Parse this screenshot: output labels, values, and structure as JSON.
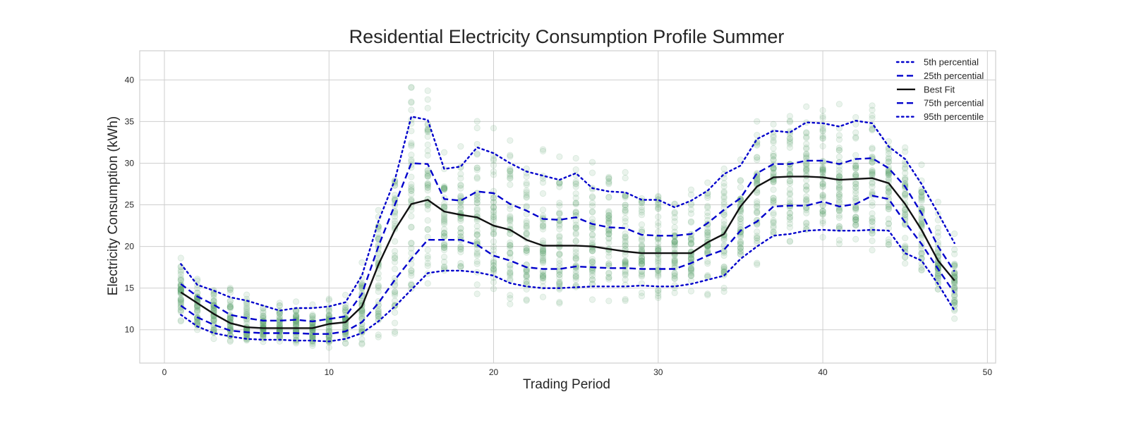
{
  "chart_data": {
    "type": "line",
    "title": "Residential Electricity Consumption Profile Summer",
    "xlabel": "Trading Period",
    "ylabel": "Electricity Consumption (kWh)",
    "xlim": [
      -1.5,
      50.5
    ],
    "ylim": [
      6,
      43.5
    ],
    "xticks": [
      0,
      10,
      20,
      30,
      40,
      50
    ],
    "yticks": [
      10,
      15,
      20,
      25,
      30,
      35,
      40
    ],
    "grid": true,
    "legend_position": "top-right",
    "scatter_color": "#5aa16e",
    "x": [
      1,
      2,
      3,
      4,
      5,
      6,
      7,
      8,
      9,
      10,
      11,
      12,
      13,
      14,
      15,
      16,
      17,
      18,
      19,
      20,
      21,
      22,
      23,
      24,
      25,
      26,
      27,
      28,
      29,
      30,
      31,
      32,
      33,
      34,
      35,
      36,
      37,
      38,
      39,
      40,
      41,
      42,
      43,
      44,
      45,
      46,
      47,
      48
    ],
    "series": [
      {
        "name": "5th percential",
        "style": "dotted",
        "color": "#0000cc",
        "values": [
          11.8,
          10.4,
          9.6,
          9.2,
          8.9,
          8.8,
          8.8,
          8.7,
          8.7,
          8.6,
          8.9,
          9.6,
          11.0,
          12.8,
          14.8,
          16.8,
          17.1,
          17.1,
          16.9,
          16.5,
          15.6,
          15.2,
          15.0,
          15.0,
          15.1,
          15.2,
          15.2,
          15.2,
          15.3,
          15.2,
          15.2,
          15.5,
          16.0,
          16.5,
          18.5,
          20.0,
          21.3,
          21.5,
          21.9,
          22.0,
          21.9,
          21.9,
          22.0,
          21.9,
          19.2,
          18.3,
          15.5,
          12.3
        ]
      },
      {
        "name": "25th percential",
        "style": "dashed",
        "color": "#0000cc",
        "values": [
          12.9,
          11.5,
          10.6,
          9.9,
          9.7,
          9.6,
          9.6,
          9.6,
          9.5,
          9.5,
          9.8,
          10.9,
          13.2,
          16.0,
          18.5,
          20.8,
          20.8,
          20.8,
          20.2,
          18.9,
          18.3,
          17.5,
          17.3,
          17.3,
          17.6,
          17.5,
          17.4,
          17.4,
          17.3,
          17.3,
          17.3,
          18.0,
          18.9,
          19.6,
          21.9,
          23.0,
          24.8,
          24.9,
          24.9,
          25.4,
          24.8,
          25.1,
          26.1,
          25.7,
          22.9,
          20.3,
          17.3,
          14.4
        ]
      },
      {
        "name": "Best Fit",
        "style": "solid",
        "color": "#111111",
        "values": [
          14.5,
          13.2,
          11.9,
          10.8,
          10.3,
          10.2,
          10.2,
          10.2,
          10.2,
          10.7,
          10.9,
          12.8,
          17.8,
          22.0,
          25.1,
          25.6,
          24.2,
          23.8,
          23.5,
          22.5,
          22.0,
          20.8,
          20.1,
          20.1,
          20.1,
          20.0,
          19.7,
          19.4,
          19.2,
          19.2,
          19.2,
          19.2,
          20.5,
          21.5,
          24.8,
          27.2,
          28.3,
          28.4,
          28.4,
          28.3,
          28.0,
          28.1,
          28.2,
          27.6,
          25.1,
          22.0,
          18.3,
          15.9
        ]
      },
      {
        "name": "75th percential",
        "style": "dashed",
        "color": "#0000cc",
        "values": [
          15.5,
          14.0,
          13.0,
          11.8,
          11.4,
          11.1,
          11.1,
          11.2,
          11.0,
          11.3,
          11.6,
          14.3,
          20.0,
          25.0,
          30.0,
          29.9,
          25.7,
          25.5,
          26.6,
          26.4,
          25.1,
          24.3,
          23.3,
          23.2,
          23.5,
          22.7,
          22.3,
          22.2,
          21.4,
          21.3,
          21.3,
          21.5,
          22.8,
          24.4,
          25.8,
          28.8,
          29.9,
          29.9,
          30.3,
          30.3,
          29.9,
          30.5,
          30.6,
          29.4,
          27.2,
          24.0,
          20.0,
          17.0
        ]
      },
      {
        "name": "95th percentile",
        "style": "dotted",
        "color": "#0000cc",
        "values": [
          17.9,
          15.4,
          14.7,
          13.9,
          13.5,
          12.9,
          12.3,
          12.6,
          12.6,
          12.8,
          13.3,
          16.5,
          23.0,
          28.0,
          35.6,
          35.2,
          29.3,
          29.6,
          31.9,
          31.2,
          30.0,
          29.0,
          28.5,
          28.0,
          28.8,
          27.0,
          26.6,
          26.5,
          25.6,
          25.6,
          24.7,
          25.5,
          26.7,
          28.7,
          29.7,
          32.9,
          33.9,
          33.7,
          34.9,
          34.8,
          34.4,
          35.1,
          34.8,
          32.0,
          30.5,
          27.5,
          24.0,
          20.4
        ]
      }
    ]
  }
}
